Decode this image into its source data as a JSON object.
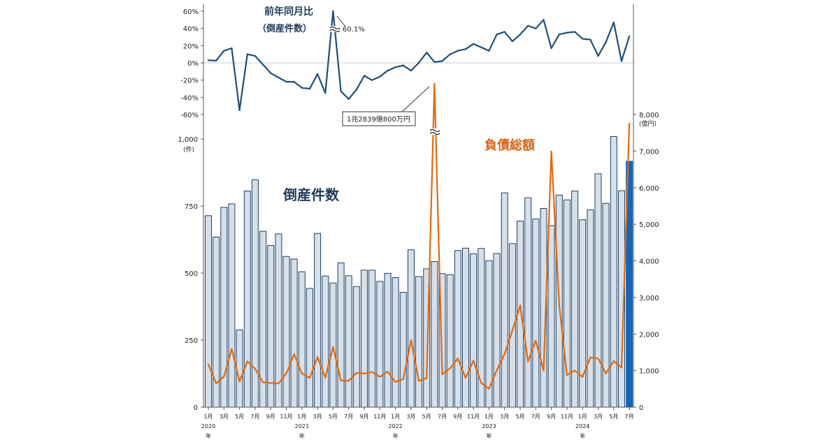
{
  "chart_data": [
    {
      "type": "line",
      "name": "yoy",
      "title": "前年同月比",
      "subtitle": "（倒産件数）",
      "yticks": [
        "60%",
        "40%",
        "20%",
        "0%",
        "-20%",
        "-40%",
        "-60%"
      ],
      "ylim": [
        -60,
        60
      ],
      "values": [
        3,
        2.5,
        14,
        17,
        -55,
        10,
        8,
        -2,
        -12,
        -17,
        -22,
        -22,
        -29,
        -30,
        -13,
        -35,
        60.1,
        -33,
        -42,
        -31,
        -15,
        -20,
        -16,
        -9,
        -5,
        -3,
        -9,
        0,
        12,
        1,
        2,
        10,
        14,
        16,
        22,
        18,
        14,
        33,
        36,
        25,
        33,
        43,
        40,
        50,
        17,
        33,
        35,
        36,
        28,
        27,
        8,
        24,
        47,
        2,
        31
      ],
      "callout": "60.1%",
      "colors": {
        "line": "#1f4e79",
        "zero": "#c0cfdc"
      }
    },
    {
      "type": "bar",
      "name": "bankruptcies",
      "series_label": "倒産件数",
      "ylabel": "(件)",
      "yticks": [
        "1,000",
        "750",
        "500",
        "250",
        "0"
      ],
      "ylim": [
        0,
        1000
      ],
      "values": [
        714,
        634,
        745,
        758,
        288,
        806,
        848,
        656,
        603,
        646,
        562,
        552,
        505,
        443,
        648,
        489,
        463,
        538,
        490,
        450,
        511,
        511,
        469,
        499,
        483,
        428,
        587,
        487,
        516,
        543,
        498,
        494,
        584,
        593,
        572,
        592,
        546,
        573,
        799,
        610,
        694,
        781,
        702,
        741,
        677,
        791,
        773,
        806,
        699,
        736,
        870,
        760,
        1009,
        807,
        917
      ],
      "colors": {
        "fill": "#d6e0ea",
        "stroke": "#1f3f5f",
        "highlight": "#1766b8"
      }
    },
    {
      "type": "line",
      "name": "liabilities",
      "series_label": "負債総額",
      "ylabel": "(億円)",
      "yticks": [
        "8,000",
        "7,000",
        "6,000",
        "5,000",
        "4,000",
        "3,000",
        "2,000",
        "1,000",
        "0"
      ],
      "ylim": [
        0,
        8000
      ],
      "values": [
        1165,
        650,
        840,
        1590,
        700,
        1250,
        1050,
        680,
        660,
        650,
        920,
        1450,
        920,
        800,
        1370,
        810,
        1640,
        730,
        720,
        940,
        920,
        960,
        830,
        970,
        690,
        770,
        1830,
        720,
        790,
        12839,
        900,
        1060,
        1330,
        800,
        1270,
        660,
        500,
        1010,
        1450,
        2100,
        2780,
        1250,
        1820,
        1000,
        6990,
        2800,
        880,
        1000,
        830,
        1360,
        1330,
        920,
        1260,
        1080,
        7750
      ],
      "callout": "1兆2839億800万円",
      "colors": {
        "line": "#e06a10"
      }
    }
  ],
  "x_axis": {
    "labels": [
      "1月",
      "3月",
      "5月",
      "7月",
      "9月",
      "11月",
      "1月",
      "3月",
      "5月",
      "7月",
      "9月",
      "11月",
      "1月",
      "3月",
      "5月",
      "7月",
      "9月",
      "11月",
      "1月",
      "3月",
      "5月",
      "7月",
      "9月",
      "11月",
      "1月",
      "3月",
      "5月",
      "7月"
    ],
    "years": [
      "2020",
      "2021",
      "2022",
      "2023",
      "2024"
    ],
    "year_suffix": "年"
  }
}
